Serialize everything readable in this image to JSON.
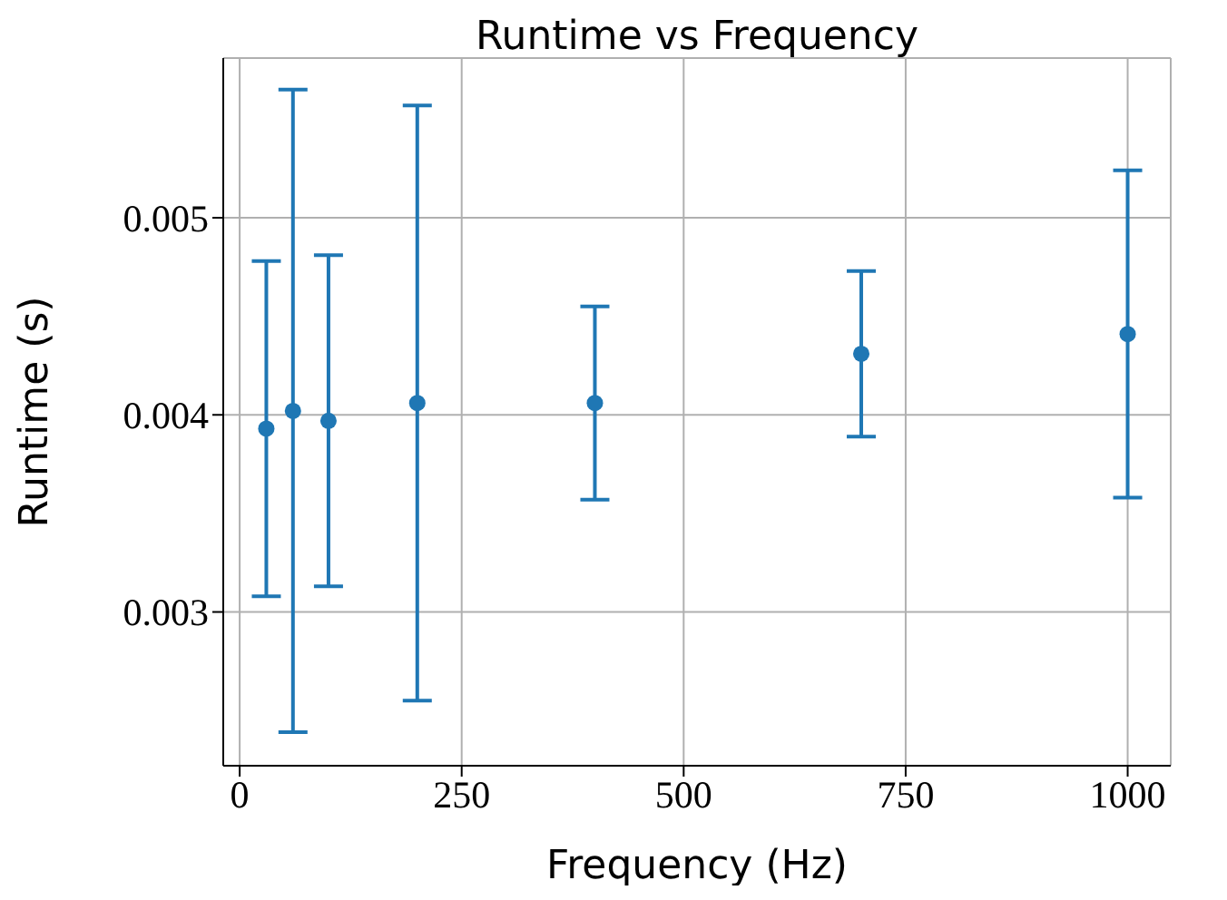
{
  "chart_data": {
    "type": "scatter",
    "title": "Runtime vs Frequency",
    "xlabel": "Frequency (Hz)",
    "ylabel": "Runtime (s)",
    "x": [
      30,
      60,
      100,
      200,
      400,
      700,
      1000
    ],
    "series": [
      {
        "color": "#1f77b4",
        "values": [
          0.00393,
          0.00402,
          0.00397,
          0.00406,
          0.00406,
          0.00431,
          0.00441
        ],
        "errors": [
          0.00085,
          0.00163,
          0.00084,
          0.00151,
          0.00049,
          0.00042,
          0.00083
        ]
      }
    ],
    "xlim": [
      -18.5,
      1048.5
    ],
    "xticks": [
      0,
      250,
      500,
      750,
      1000
    ],
    "ylim": [
      0.00222,
      0.00581
    ],
    "yticks": [
      0.003,
      0.004,
      0.005
    ],
    "grid": true,
    "marker": "circle"
  }
}
